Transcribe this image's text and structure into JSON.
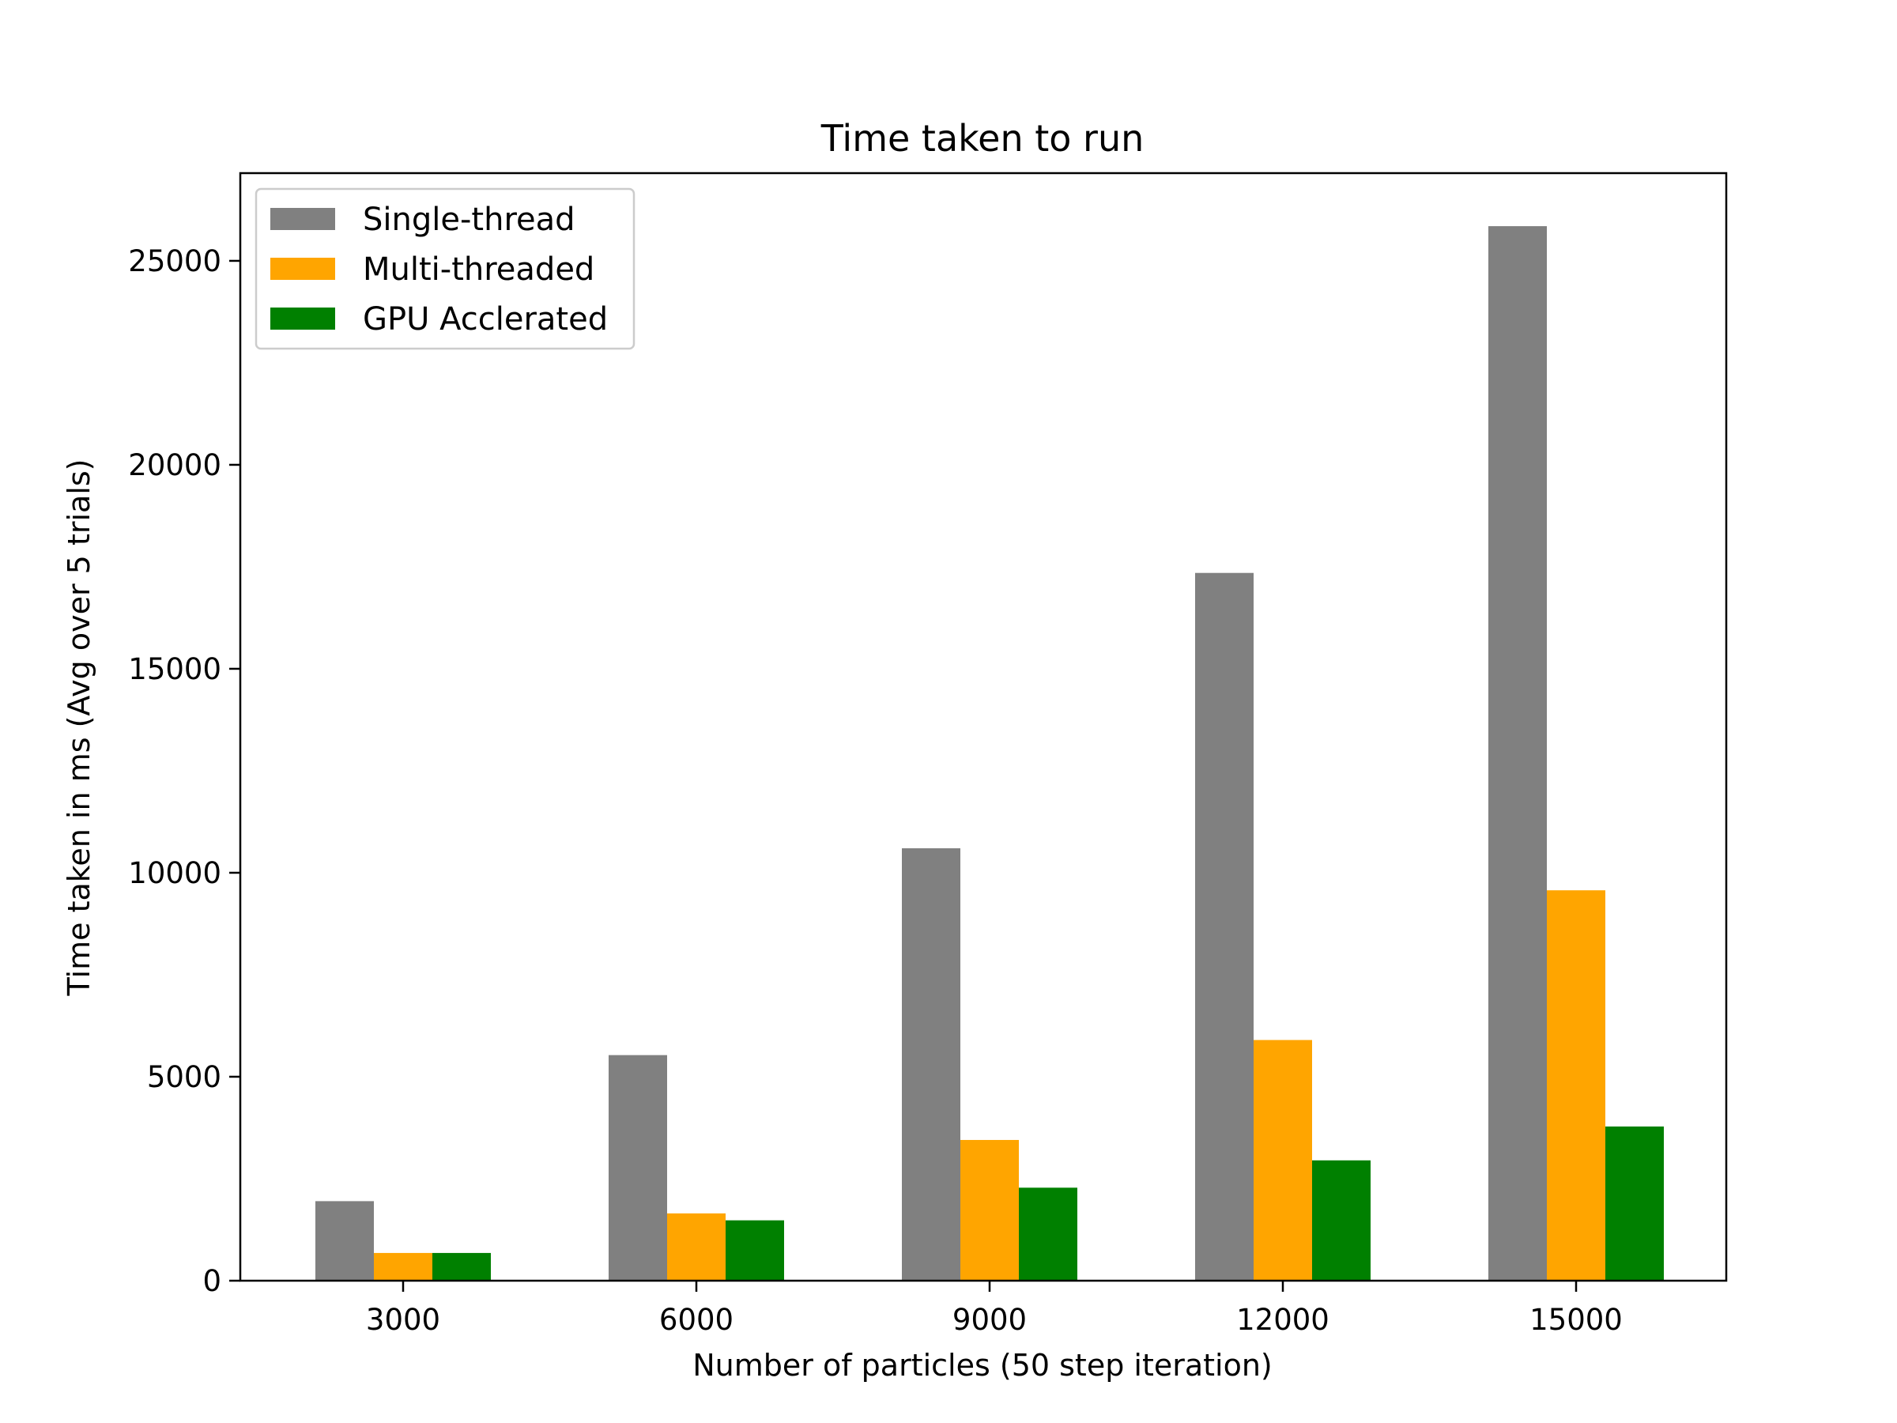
{
  "chart_data": {
    "type": "bar",
    "title": "Time taken to run",
    "xlabel": "Number of particles (50 step iteration)",
    "ylabel": "Time taken in ms (Avg over 5 trials)",
    "categories": [
      "3000",
      "6000",
      "9000",
      "12000",
      "15000"
    ],
    "series": [
      {
        "name": "Single-thread",
        "color": "#808080",
        "values": [
          1950,
          5530,
          10600,
          17350,
          25850
        ]
      },
      {
        "name": "Multi-threaded",
        "color": "#ffa500",
        "values": [
          680,
          1650,
          3450,
          5900,
          9570
        ]
      },
      {
        "name": "GPU Acclerated",
        "color": "#008000",
        "values": [
          680,
          1480,
          2280,
          2950,
          3780
        ]
      }
    ],
    "ylim": [
      0,
      27150
    ],
    "yticks": [
      0,
      5000,
      10000,
      15000,
      20000,
      25000
    ],
    "grid": false,
    "legend": "top-left"
  }
}
